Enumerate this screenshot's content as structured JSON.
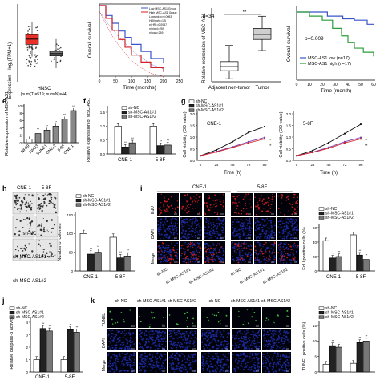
{
  "figure": {
    "panel_letters": {
      "e": "e",
      "f": "f",
      "g": "g",
      "h": "h",
      "i": "i",
      "j": "j",
      "k": "k"
    },
    "colors": {
      "red_box": "#e8302b",
      "grey_box": "#777777",
      "green": "#2c9c3a",
      "blue": "#3a55c8",
      "purple": "#7a3fa8",
      "red_line": "#d2222a",
      "dapi": "#1c2a9a",
      "edu": "#c01f1f",
      "tunel": "#3fbf3f"
    }
  },
  "panel_a": {
    "ylabel": "Expression – log₂(TPM+1)",
    "xlabel": "HNSC",
    "xsub": "(num(T)=519; num(N)=44)"
  },
  "panel_b": {
    "legend": [
      "Low MSC-AS1 Group",
      "High MSC-AS1 Group",
      "Logrank p=0.0053",
      "HR(high)=1.5",
      "p(HR)=0.0057",
      "n(high)=259",
      "n(low)=259"
    ],
    "ylabel": "Overall survival",
    "xlabel": "Time (months)",
    "xticks": [
      "0",
      "50",
      "100",
      "150",
      "200",
      "250"
    ]
  },
  "panel_c": {
    "n": "n=34",
    "sig": "**",
    "ylabel": "Relative expression of MSC-AS1",
    "categories": [
      "Adjacent non-tumor",
      "Tumor"
    ]
  },
  "panel_d": {
    "pval": "p=0.009",
    "ylabel": "Overall survival",
    "xlabel": "Time (month)",
    "xticks": [
      "0",
      "10",
      "20",
      "30",
      "40",
      "50",
      "60"
    ],
    "legend": [
      "MSC-AS1 low  (n=17)",
      "MSC-AS1 high (n=17)"
    ]
  },
  "panel_e": {
    "ylabel": "Relative expression of MSC-AS1",
    "yticks": [
      "0",
      "2",
      "4",
      "6",
      "8",
      "10"
    ],
    "categories": [
      "NP69",
      "TWO3",
      "SUNE1",
      "CNE-2",
      "5-8F",
      "CNE-1"
    ]
  },
  "panel_f": {
    "ylabel": "Relative expression of MSC-AS1",
    "yticks": [
      "0.0",
      "0.5",
      "1.0",
      "1.5"
    ],
    "legend": [
      "sh-NC",
      "sh-MSC-AS1#1",
      "sh-MSC-AS1#2"
    ],
    "categories": [
      "CNE-1",
      "5-8F"
    ]
  },
  "panel_g": {
    "legend": [
      "sh-NC",
      "sh-MSC-AS1#1",
      "sh-MSC-AS1#2"
    ],
    "ylabel": "Cell viability (OD value)",
    "xlabel": "Time (h)",
    "xticks": [
      "0",
      "24",
      "48",
      "72",
      "96"
    ],
    "yticks": [
      "0.0",
      "0.5",
      "1.0",
      "1.5",
      "2.0"
    ],
    "titles": [
      "CNE-1",
      "5-8F"
    ]
  },
  "panel_h": {
    "col_labels": [
      "CNE-1",
      "5-8F"
    ],
    "row_labels": [
      "sh-NC",
      "sh-MSC-AS1#1",
      "sh-MSC-AS1#2"
    ],
    "legend": [
      "sh-NC",
      "sh-MSC-AS1#1",
      "sh-MSC-AS1#2"
    ],
    "ylabel": "Number of colonies",
    "yticks": [
      "0",
      "50",
      "100",
      "150"
    ],
    "categories": [
      "CNE-1",
      "5-8F"
    ]
  },
  "panel_i": {
    "col_labels": [
      "CNE-1",
      "5-8F"
    ],
    "row_labels": [
      "EdU",
      "DAPI",
      "Merge"
    ],
    "bottom_labels": [
      "sh-NC",
      "sh-MSC-AS1#1",
      "sh-MSC-AS1#2",
      "sh-NC",
      "sh-MSC-AS1#1",
      "sh-MSC-AS1#2"
    ],
    "legend": [
      "sh-NC",
      "sh-MSC-AS1#1",
      "sh-MSC-AS1#2"
    ],
    "ylabel": "EdU positive cells (%)",
    "yticks": [
      "0",
      "20",
      "40",
      "60"
    ],
    "categories": [
      "CNE-1",
      "5-8F"
    ]
  },
  "panel_j": {
    "legend": [
      "sh-NC",
      "sh-MSC-AS1#1",
      "sh-MSC-AS1#2"
    ],
    "ylabel": "Relative caspase-3 activity",
    "yticks": [
      "0",
      "1",
      "2",
      "3",
      "4"
    ],
    "categories": [
      "CNE-1",
      "5-8F"
    ]
  },
  "panel_k": {
    "col_labels": [
      "sh-NC",
      "sh-MSC-AS1#1",
      "sh-MSC-AS1#2",
      "sh-NC",
      "sh-MSC-AS1#1",
      "sh-MSC-AS1#2"
    ],
    "row_labels": [
      "TUNEL",
      "DAPI",
      "Merge"
    ],
    "legend": [
      "sh-NC",
      "sh-MSC-AS1#1",
      "sh-MSC-AS1#2"
    ],
    "ylabel": "TUNEL positive cells (%)",
    "yticks": [
      "0",
      "5",
      "10",
      "15"
    ],
    "categories": [
      "CNE-1",
      "5-8F"
    ]
  },
  "chart_data": [
    {
      "panel": "a",
      "type": "box",
      "categories": [
        "T",
        "N"
      ],
      "median": [
        5.6,
        3.7
      ],
      "q1": [
        4.9,
        3.4
      ],
      "q3": [
        6.2,
        4.0
      ],
      "ylim": [
        0,
        10
      ]
    },
    {
      "panel": "b",
      "type": "line",
      "title": "",
      "x_max": 250,
      "series": [
        {
          "name": "Low MSC-AS1 Group",
          "x": [
            0,
            20,
            40,
            60,
            80,
            100,
            130,
            160,
            200
          ],
          "y": [
            1.0,
            0.86,
            0.75,
            0.64,
            0.55,
            0.45,
            0.35,
            0.25,
            0.18
          ]
        },
        {
          "name": "High MSC-AS1 Group",
          "x": [
            0,
            20,
            40,
            60,
            80,
            100,
            130,
            160,
            200
          ],
          "y": [
            1.0,
            0.82,
            0.65,
            0.52,
            0.41,
            0.3,
            0.2,
            0.12,
            0.06
          ]
        }
      ]
    },
    {
      "panel": "c",
      "type": "box",
      "categories": [
        "Adjacent non-tumor",
        "Tumor"
      ],
      "median": [
        1.5,
        4.7
      ],
      "q1": [
        1.1,
        4.2
      ],
      "q3": [
        2.0,
        5.3
      ],
      "min": [
        0.3,
        3.1
      ],
      "max": [
        3.6,
        6.5
      ],
      "ylim": [
        0,
        7
      ]
    },
    {
      "panel": "d",
      "type": "line",
      "xlim": [
        0,
        60
      ],
      "series": [
        {
          "name": "MSC-AS1 low  (n=17)",
          "x": [
            0,
            12,
            24,
            36,
            45,
            55,
            60
          ],
          "y": [
            1.0,
            1.0,
            0.94,
            0.9,
            0.88,
            0.82,
            0.82
          ]
        },
        {
          "name": "MSC-AS1 high (n=17)",
          "x": [
            0,
            10,
            20,
            28,
            35,
            40,
            45,
            52,
            60
          ],
          "y": [
            1.0,
            0.94,
            0.88,
            0.76,
            0.65,
            0.55,
            0.47,
            0.41,
            0.35
          ]
        }
      ]
    },
    {
      "panel": "e",
      "type": "bar",
      "categories": [
        "NP69",
        "TWO3",
        "SUNE1",
        "CNE-2",
        "5-8F",
        "CNE-1"
      ],
      "values": [
        1.0,
        2.5,
        3.4,
        4.5,
        6.4,
        8.7
      ],
      "ylim": [
        0,
        10
      ]
    },
    {
      "panel": "f",
      "type": "bar",
      "categories": [
        "CNE-1",
        "5-8F"
      ],
      "series": [
        {
          "name": "sh-NC",
          "values": [
            1.0,
            1.0
          ]
        },
        {
          "name": "sh-MSC-AS1#1",
          "values": [
            0.25,
            0.3
          ]
        },
        {
          "name": "sh-MSC-AS1#2",
          "values": [
            0.4,
            0.32
          ]
        }
      ],
      "ylim": [
        0,
        1.5
      ]
    },
    {
      "panel": "g",
      "type": "line",
      "title": "CNE-1",
      "x": [
        0,
        24,
        48,
        72,
        96
      ],
      "series": [
        {
          "name": "sh-NC",
          "values": [
            0.2,
            0.45,
            0.8,
            1.2,
            1.45
          ]
        },
        {
          "name": "sh-MSC-AS1#1",
          "values": [
            0.2,
            0.38,
            0.58,
            0.8,
            0.98
          ]
        },
        {
          "name": "sh-MSC-AS1#2",
          "values": [
            0.2,
            0.36,
            0.55,
            0.75,
            0.92
          ]
        }
      ],
      "ylim": [
        0,
        2
      ]
    },
    {
      "panel": "g",
      "type": "line",
      "title": "5-8F",
      "x": [
        0,
        24,
        48,
        72,
        96
      ],
      "series": [
        {
          "name": "sh-NC",
          "values": [
            0.2,
            0.42,
            0.76,
            1.15,
            1.55
          ]
        },
        {
          "name": "sh-MSC-AS1#1",
          "values": [
            0.2,
            0.35,
            0.56,
            0.8,
            0.98
          ]
        },
        {
          "name": "sh-MSC-AS1#2",
          "values": [
            0.2,
            0.34,
            0.52,
            0.75,
            0.92
          ]
        }
      ],
      "ylim": [
        0,
        2
      ]
    },
    {
      "panel": "h",
      "type": "bar",
      "categories": [
        "CNE-1",
        "5-8F"
      ],
      "series": [
        {
          "name": "sh-NC",
          "values": [
            100,
            90
          ]
        },
        {
          "name": "sh-MSC-AS1#1",
          "values": [
            45,
            35
          ]
        },
        {
          "name": "sh-MSC-AS1#2",
          "values": [
            50,
            40
          ]
        }
      ],
      "ylim": [
        0,
        150
      ]
    },
    {
      "panel": "i",
      "type": "bar",
      "categories": [
        "CNE-1",
        "5-8F"
      ],
      "series": [
        {
          "name": "sh-NC",
          "values": [
            42,
            50
          ]
        },
        {
          "name": "sh-MSC-AS1#1",
          "values": [
            18,
            22
          ]
        },
        {
          "name": "sh-MSC-AS1#2",
          "values": [
            20,
            16
          ]
        }
      ],
      "ylim": [
        0,
        60
      ]
    },
    {
      "panel": "j",
      "type": "bar",
      "categories": [
        "CNE-1",
        "5-8F"
      ],
      "series": [
        {
          "name": "sh-NC",
          "values": [
            1.0,
            1.0
          ]
        },
        {
          "name": "sh-MSC-AS1#1",
          "values": [
            3.5,
            3.4
          ]
        },
        {
          "name": "sh-MSC-AS1#2",
          "values": [
            3.3,
            3.2
          ]
        }
      ],
      "ylim": [
        0,
        4
      ]
    },
    {
      "panel": "k",
      "type": "bar",
      "categories": [
        "CNE-1",
        "5-8F"
      ],
      "series": [
        {
          "name": "sh-NC",
          "values": [
            2.5,
            2.8
          ]
        },
        {
          "name": "sh-MSC-AS1#1",
          "values": [
            8.5,
            9.5
          ]
        },
        {
          "name": "sh-MSC-AS1#2",
          "values": [
            8.0,
            10.0
          ]
        }
      ],
      "ylim": [
        0,
        15
      ]
    }
  ]
}
